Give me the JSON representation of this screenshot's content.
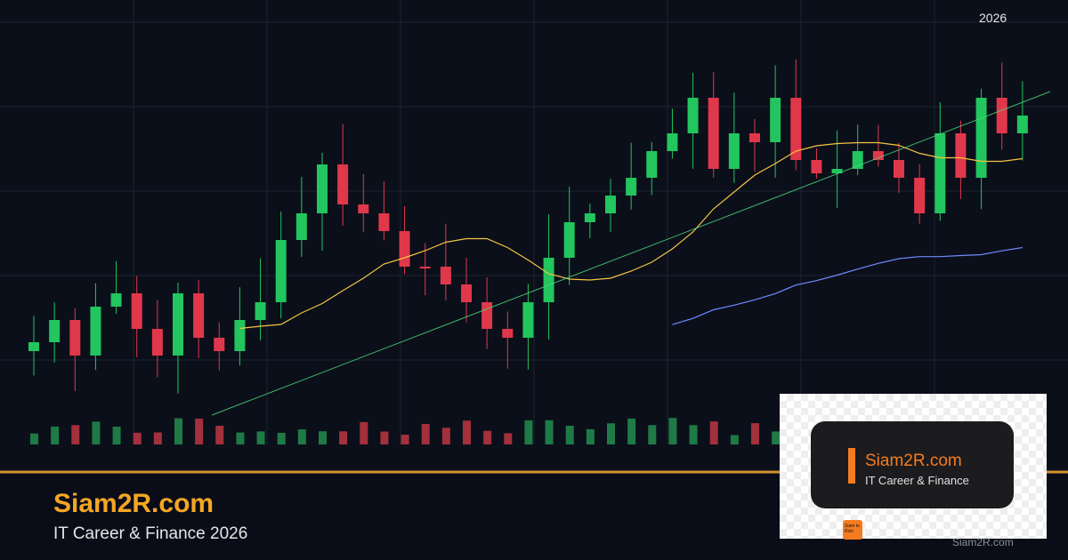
{
  "header": {
    "year": "2026"
  },
  "footer": {
    "brand": "Siam2R.com",
    "tagline": "IT Career & Finance 2026"
  },
  "logo_card": {
    "title": "Siam2R.com",
    "subtitle": "IT Career & Finance",
    "icon_text": "Siam to Rich"
  },
  "watermark": "Siam2R.com"
}
